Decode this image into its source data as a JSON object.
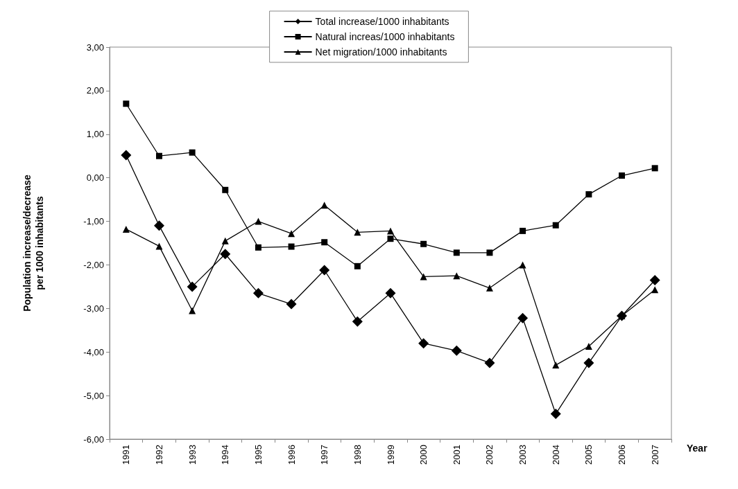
{
  "chart_data": {
    "type": "line",
    "ylabel": "Population increase/decrease\nper 1000 inhabitants",
    "xlabel": "Year",
    "categories": [
      "1991",
      "1992",
      "1993",
      "1994",
      "1995",
      "1996",
      "1997",
      "1998",
      "1999",
      "2000",
      "2001",
      "2002",
      "2003",
      "2004",
      "2005",
      "2006",
      "2007"
    ],
    "series": [
      {
        "name": "Total increase/1000 inhabitants",
        "color": "#000000",
        "marker": "diamond",
        "values": [
          0.52,
          -1.1,
          -2.5,
          -1.75,
          -2.65,
          -2.9,
          -2.12,
          -3.3,
          -2.65,
          -3.8,
          -3.97,
          -4.25,
          -3.22,
          -5.42,
          -4.25,
          -3.17,
          -2.35
        ]
      },
      {
        "name": "Natural increas/1000 inhabitants",
        "color": "#000000",
        "marker": "square",
        "values": [
          1.7,
          0.5,
          0.58,
          -0.28,
          -1.6,
          -1.58,
          -1.48,
          -2.03,
          -1.4,
          -1.52,
          -1.72,
          -1.72,
          -1.22,
          -1.09,
          -0.38,
          0.05,
          0.22
        ]
      },
      {
        "name": "Net migration/1000 inhabitants",
        "color": "#000000",
        "marker": "triangle",
        "values": [
          -1.18,
          -1.57,
          -3.05,
          -1.45,
          -1.0,
          -1.28,
          -0.63,
          -1.25,
          -1.22,
          -2.27,
          -2.25,
          -2.53,
          -2.0,
          -4.3,
          -3.87,
          -3.17,
          -2.57
        ]
      }
    ],
    "ylim": [
      -6,
      3
    ],
    "yticks": [
      {
        "value": -6,
        "label": "-6,00"
      },
      {
        "value": -5,
        "label": "-5,00"
      },
      {
        "value": -4,
        "label": "-4,00"
      },
      {
        "value": -3,
        "label": "-3,00"
      },
      {
        "value": -2,
        "label": "-2,00"
      },
      {
        "value": -1,
        "label": "-1,00"
      },
      {
        "value": 0,
        "label": "0,00"
      },
      {
        "value": 1,
        "label": "1,00"
      },
      {
        "value": 2,
        "label": "2,00"
      },
      {
        "value": 3,
        "label": "3,00"
      }
    ],
    "grid": false,
    "legend": "top",
    "line_style": "solid"
  }
}
